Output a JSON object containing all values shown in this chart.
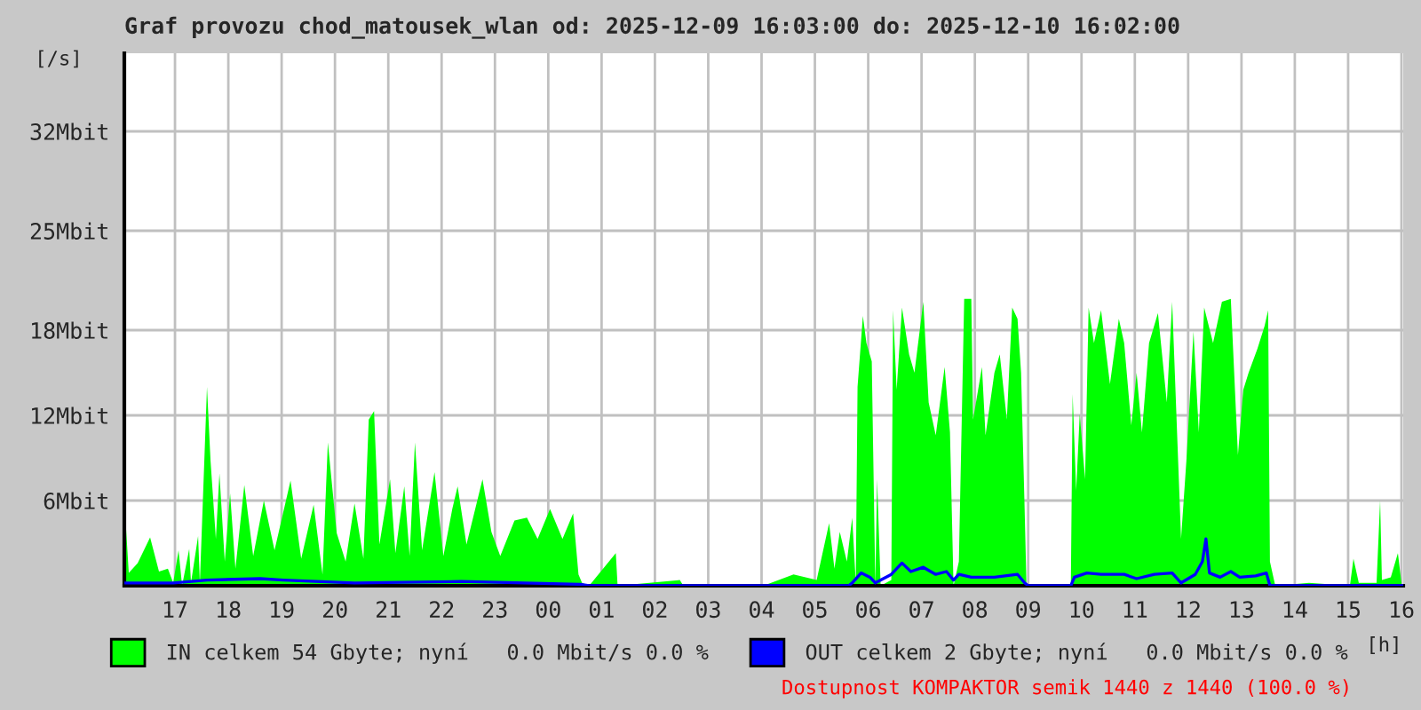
{
  "chart_data": {
    "type": "area",
    "title": "Graf provozu chod_matousek_wlan od: 2025-12-09 16:03:00 do: 2025-12-10 16:02:00",
    "xlabel": "[h]",
    "ylabel": "[/s]",
    "xlim": [
      "2025-12-09T16:03",
      "2025-12-10T16:02"
    ],
    "xticks": [
      {
        "value": "2025-12-09T17:00",
        "label": "17"
      },
      {
        "value": "2025-12-09T18:00",
        "label": "18"
      },
      {
        "value": "2025-12-09T19:00",
        "label": "19"
      },
      {
        "value": "2025-12-09T20:00",
        "label": "20"
      },
      {
        "value": "2025-12-09T21:00",
        "label": "21"
      },
      {
        "value": "2025-12-09T22:00",
        "label": "22"
      },
      {
        "value": "2025-12-09T23:00",
        "label": "23"
      },
      {
        "value": "2025-12-10T00:00",
        "label": "00"
      },
      {
        "value": "2025-12-10T01:00",
        "label": "01"
      },
      {
        "value": "2025-12-10T02:00",
        "label": "02"
      },
      {
        "value": "2025-12-10T03:00",
        "label": "03"
      },
      {
        "value": "2025-12-10T04:00",
        "label": "04"
      },
      {
        "value": "2025-12-10T05:00",
        "label": "05"
      },
      {
        "value": "2025-12-10T06:00",
        "label": "06"
      },
      {
        "value": "2025-12-10T07:00",
        "label": "07"
      },
      {
        "value": "2025-12-10T08:00",
        "label": "08"
      },
      {
        "value": "2025-12-10T09:00",
        "label": "09"
      },
      {
        "value": "2025-12-10T10:00",
        "label": "10"
      },
      {
        "value": "2025-12-10T11:00",
        "label": "11"
      },
      {
        "value": "2025-12-10T12:00",
        "label": "12"
      },
      {
        "value": "2025-12-10T13:00",
        "label": "13"
      },
      {
        "value": "2025-12-10T14:00",
        "label": "14"
      },
      {
        "value": "2025-12-10T15:00",
        "label": "15"
      },
      {
        "value": "2025-12-10T16:00",
        "label": "16"
      }
    ],
    "ylim": [
      0,
      37.5
    ],
    "yticks": [
      {
        "value": 6,
        "label": "6Mbit"
      },
      {
        "value": 12,
        "label": "12Mbit"
      },
      {
        "value": 18,
        "label": "18Mbit"
      },
      {
        "value": 25,
        "label": "25Mbit"
      },
      {
        "value": 32,
        "label": "32Mbit"
      }
    ],
    "grid": true,
    "legend": "bottom",
    "series": [
      {
        "name": "IN celkem 54 Gbyte; nyní   0.0 Mbit/s 0.0 %",
        "color": "#00ff00",
        "x": [
          "2025-12-09T16:04",
          "2025-12-09T16:08",
          "2025-12-09T16:18",
          "2025-12-09T16:32",
          "2025-12-09T16:42",
          "2025-12-09T16:52",
          "2025-12-09T16:58",
          "2025-12-09T17:04",
          "2025-12-09T17:08",
          "2025-12-09T17:16",
          "2025-12-09T17:18",
          "2025-12-09T17:26",
          "2025-12-09T17:28",
          "2025-12-09T17:36",
          "2025-12-09T17:40",
          "2025-12-09T17:46",
          "2025-12-09T17:50",
          "2025-12-09T17:56",
          "2025-12-09T18:02",
          "2025-12-09T18:08",
          "2025-12-09T18:18",
          "2025-12-09T18:28",
          "2025-12-09T18:40",
          "2025-12-09T18:52",
          "2025-12-09T19:10",
          "2025-12-09T19:22",
          "2025-12-09T19:36",
          "2025-12-09T19:46",
          "2025-12-09T19:52",
          "2025-12-09T20:02",
          "2025-12-09T20:12",
          "2025-12-09T20:22",
          "2025-12-09T20:32",
          "2025-12-09T20:38",
          "2025-12-09T20:44",
          "2025-12-09T20:50",
          "2025-12-09T21:02",
          "2025-12-09T21:08",
          "2025-12-09T21:18",
          "2025-12-09T21:24",
          "2025-12-09T21:30",
          "2025-12-09T21:38",
          "2025-12-09T21:52",
          "2025-12-09T22:02",
          "2025-12-09T22:12",
          "2025-12-09T22:18",
          "2025-12-09T22:28",
          "2025-12-09T22:46",
          "2025-12-09T22:56",
          "2025-12-09T23:06",
          "2025-12-09T23:22",
          "2025-12-09T23:36",
          "2025-12-09T23:48",
          "2025-12-10T00:02",
          "2025-12-10T00:16",
          "2025-12-10T00:28",
          "2025-12-10T00:34",
          "2025-12-10T00:38",
          "2025-12-10T00:46",
          "2025-12-10T01:16",
          "2025-12-10T01:18",
          "2025-12-10T02:28",
          "2025-12-10T02:32",
          "2025-12-10T04:02",
          "2025-12-10T04:36",
          "2025-12-10T05:02",
          "2025-12-10T05:16",
          "2025-12-10T05:22",
          "2025-12-10T05:28",
          "2025-12-10T05:36",
          "2025-12-10T05:42",
          "2025-12-10T05:46",
          "2025-12-10T05:48",
          "2025-12-10T05:54",
          "2025-12-10T05:58",
          "2025-12-10T06:04",
          "2025-12-10T06:08",
          "2025-12-10T06:10",
          "2025-12-10T06:14",
          "2025-12-10T06:26",
          "2025-12-10T06:28",
          "2025-12-10T06:32",
          "2025-12-10T06:38",
          "2025-12-10T06:46",
          "2025-12-10T06:52",
          "2025-12-10T07:02",
          "2025-12-10T07:08",
          "2025-12-10T07:16",
          "2025-12-10T07:26",
          "2025-12-10T07:32",
          "2025-12-10T07:36",
          "2025-12-10T07:42",
          "2025-12-10T07:48",
          "2025-12-10T07:56",
          "2025-12-10T07:58",
          "2025-12-10T08:08",
          "2025-12-10T08:12",
          "2025-12-10T08:22",
          "2025-12-10T08:28",
          "2025-12-10T08:36",
          "2025-12-10T08:42",
          "2025-12-10T08:48",
          "2025-12-10T08:52",
          "2025-12-10T08:56",
          "2025-12-10T08:58",
          "2025-12-10T09:02",
          "2025-12-10T09:48",
          "2025-12-10T09:50",
          "2025-12-10T09:54",
          "2025-12-10T09:58",
          "2025-12-10T10:04",
          "2025-12-10T10:08",
          "2025-12-10T10:14",
          "2025-12-10T10:22",
          "2025-12-10T10:32",
          "2025-12-10T10:42",
          "2025-12-10T10:48",
          "2025-12-10T10:56",
          "2025-12-10T11:02",
          "2025-12-10T11:08",
          "2025-12-10T11:16",
          "2025-12-10T11:26",
          "2025-12-10T11:36",
          "2025-12-10T11:42",
          "2025-12-10T11:48",
          "2025-12-10T11:52",
          "2025-12-10T11:58",
          "2025-12-10T12:06",
          "2025-12-10T12:12",
          "2025-12-10T12:18",
          "2025-12-10T12:28",
          "2025-12-10T12:38",
          "2025-12-10T12:48",
          "2025-12-10T12:56",
          "2025-12-10T13:02",
          "2025-12-10T13:08",
          "2025-12-10T13:18",
          "2025-12-10T13:26",
          "2025-12-10T13:30",
          "2025-12-10T13:32",
          "2025-12-10T13:38",
          "2025-12-10T14:16",
          "2025-12-10T15:02",
          "2025-12-10T15:06",
          "2025-12-10T15:12",
          "2025-12-10T15:32",
          "2025-12-10T15:36",
          "2025-12-10T15:38",
          "2025-12-10T15:48",
          "2025-12-10T15:56",
          "2025-12-10T16:00"
        ],
        "values": [
          5.0,
          0.9,
          1.6,
          3.4,
          1.0,
          1.2,
          0.2,
          2.5,
          0,
          2.6,
          0.2,
          3.5,
          0.2,
          14.0,
          8.8,
          3.3,
          7.9,
          1.7,
          6.5,
          1.2,
          7.1,
          2.1,
          6.0,
          2.5,
          7.4,
          1.9,
          5.7,
          0.8,
          10.1,
          3.7,
          1.7,
          5.8,
          1.9,
          11.7,
          12.3,
          2.9,
          7.5,
          2.3,
          7.0,
          2.1,
          10.1,
          2.5,
          8.0,
          2.1,
          5.4,
          7.0,
          2.9,
          7.5,
          3.8,
          2.1,
          4.6,
          4.8,
          3.3,
          5.4,
          3.3,
          5.1,
          0.8,
          0.2,
          0,
          2.3,
          0,
          0.4,
          0,
          0,
          0.8,
          0.4,
          4.4,
          1.2,
          3.8,
          1.7,
          4.8,
          0.2,
          14.0,
          19.0,
          17.1,
          15.8,
          0,
          7.5,
          0,
          0.4,
          19.4,
          13.8,
          19.6,
          16.3,
          15.0,
          20.0,
          12.9,
          10.6,
          15.4,
          10.8,
          0,
          1.7,
          20.2,
          20.2,
          11.7,
          15.4,
          10.6,
          15.0,
          16.3,
          11.7,
          19.6,
          18.8,
          15.0,
          5.4,
          0.2,
          0,
          0,
          13.5,
          6.7,
          12.1,
          7.5,
          19.6,
          17.1,
          19.4,
          14.2,
          18.8,
          17.1,
          11.3,
          15.0,
          10.8,
          17.1,
          19.2,
          12.9,
          20.0,
          10.0,
          3.3,
          8.8,
          17.9,
          10.8,
          19.6,
          17.1,
          20.0,
          20.2,
          9.2,
          13.8,
          15.0,
          16.7,
          18.3,
          19.4,
          1.7,
          0,
          0.2,
          0,
          1.9,
          0.2,
          0.2,
          6.0,
          0.4,
          0.6,
          2.3,
          0.2
        ]
      },
      {
        "name": "OUT celkem 2 Gbyte; nyní   0.0 Mbit/s 0.0 %",
        "color": "#0000ff",
        "type": "line",
        "x": [
          "2025-12-09T16:04",
          "2025-12-09T16:58",
          "2025-12-09T17:36",
          "2025-12-09T18:36",
          "2025-12-09T19:02",
          "2025-12-09T20:22",
          "2025-12-09T22:22",
          "2025-12-10T00:36",
          "2025-12-10T00:46",
          "2025-12-10T05:38",
          "2025-12-10T05:42",
          "2025-12-10T05:52",
          "2025-12-10T06:02",
          "2025-12-10T06:08",
          "2025-12-10T06:26",
          "2025-12-10T06:38",
          "2025-12-10T06:48",
          "2025-12-10T07:02",
          "2025-12-10T07:16",
          "2025-12-10T07:28",
          "2025-12-10T07:36",
          "2025-12-10T07:42",
          "2025-12-10T07:56",
          "2025-12-10T08:22",
          "2025-12-10T08:48",
          "2025-12-10T08:56",
          "2025-12-10T09:00",
          "2025-12-10T09:48",
          "2025-12-10T09:52",
          "2025-12-10T10:06",
          "2025-12-10T10:22",
          "2025-12-10T10:48",
          "2025-12-10T11:02",
          "2025-12-10T11:22",
          "2025-12-10T11:42",
          "2025-12-10T11:52",
          "2025-12-10T12:08",
          "2025-12-10T12:16",
          "2025-12-10T12:20",
          "2025-12-10T12:24",
          "2025-12-10T12:36",
          "2025-12-10T12:48",
          "2025-12-10T12:58",
          "2025-12-10T13:16",
          "2025-12-10T13:28",
          "2025-12-10T13:32",
          "2025-12-10T16:02"
        ],
        "values": [
          0.2,
          0.2,
          0.4,
          0.5,
          0.4,
          0.2,
          0.3,
          0.1,
          0,
          0,
          0.2,
          0.9,
          0.6,
          0.2,
          0.8,
          1.6,
          1.0,
          1.3,
          0.8,
          1.0,
          0.4,
          0.8,
          0.6,
          0.6,
          0.8,
          0.2,
          0,
          0,
          0.6,
          0.9,
          0.8,
          0.8,
          0.5,
          0.8,
          0.9,
          0.2,
          0.8,
          1.7,
          3.3,
          0.9,
          0.6,
          1.0,
          0.6,
          0.7,
          0.9,
          0,
          0
        ]
      }
    ],
    "annotations": [
      "Dostupnost KOMPAKTOR semik 1440 z 1440 (100.0 %)"
    ]
  }
}
